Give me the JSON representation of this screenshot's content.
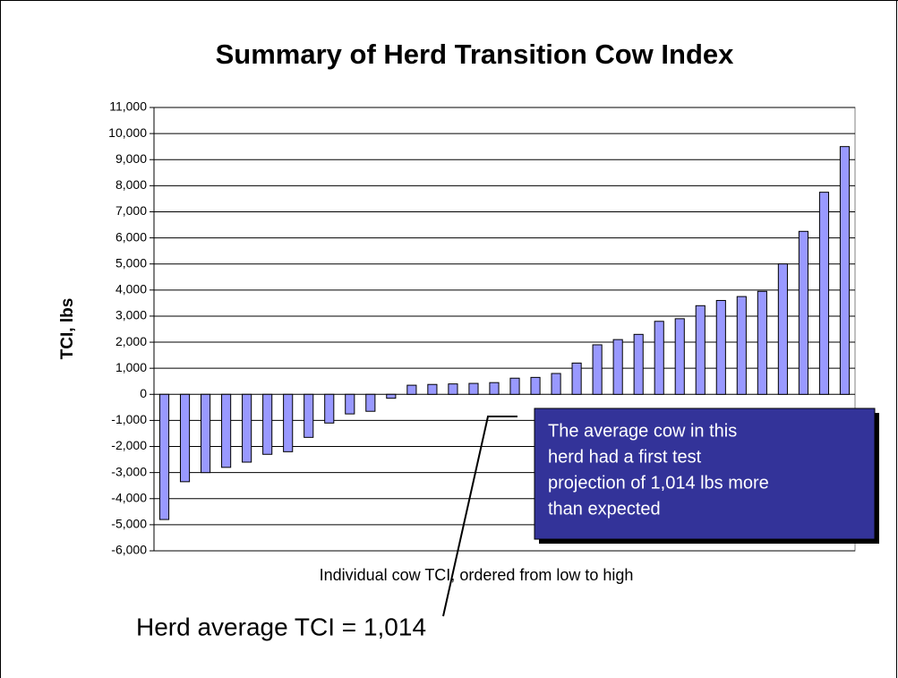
{
  "chart_data": {
    "type": "bar",
    "title": "Summary of Herd Transition Cow Index",
    "y_label": "TCI, lbs",
    "x_label": "Individual cow TCI, ordered from low to high",
    "annotation": [
      "The average cow in this",
      "herd had a first test",
      "projection of 1,014 lbs more",
      "than expected"
    ],
    "footnote": "Herd average TCI = 1,014",
    "categories": [
      null,
      null,
      null,
      null,
      null,
      null,
      null,
      null,
      null,
      null,
      null,
      null,
      null,
      null,
      null,
      null,
      null,
      null,
      null,
      null,
      null,
      null,
      null,
      null,
      null,
      null,
      null,
      null,
      null,
      null,
      null,
      null,
      null,
      null
    ],
    "values": [
      -4800,
      -3350,
      -3000,
      -2800,
      -2600,
      -2300,
      -2200,
      -1650,
      -1100,
      -750,
      -650,
      -150,
      350,
      380,
      400,
      420,
      450,
      620,
      650,
      800,
      1200,
      1900,
      2100,
      2300,
      2800,
      2900,
      3400,
      3600,
      3750,
      3950,
      5000,
      6250,
      7750,
      9500
    ],
    "color": "#9999ff",
    "ylim": [
      -6000,
      11000
    ],
    "yticks": [
      {
        "value": -6000,
        "label": "-6,000"
      },
      {
        "value": -5000,
        "label": "-5,000"
      },
      {
        "value": -4000,
        "label": "-4,000"
      },
      {
        "value": -3000,
        "label": "-3,000"
      },
      {
        "value": -2000,
        "label": "-2,000"
      },
      {
        "value": -1000,
        "label": "-1,000"
      },
      0,
      {
        "value": 1000,
        "label": "1,000"
      },
      {
        "value": 2000,
        "label": "2,000"
      },
      {
        "value": 3000,
        "label": "3,000"
      },
      {
        "value": 4000,
        "label": "4,000"
      },
      {
        "value": 5000,
        "label": "5,000"
      },
      {
        "value": 6000,
        "label": "6,000"
      },
      {
        "value": 7000,
        "label": "7,000"
      },
      {
        "value": 8000,
        "label": "8,000"
      },
      {
        "value": 9000,
        "label": "9,000"
      },
      {
        "value": 10000,
        "label": "10,000"
      },
      {
        "value": 11000,
        "label": "11,000"
      }
    ],
    "grid": true
  }
}
